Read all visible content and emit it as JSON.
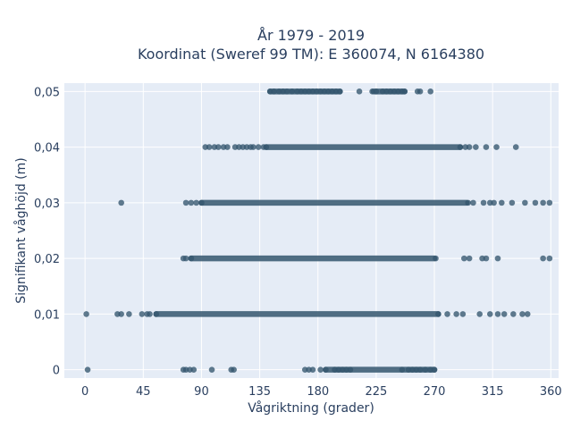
{
  "chart_data": {
    "type": "scatter",
    "title_line1": "År 1979 - 2019",
    "title_line2": "Koordinat (Sweref 99 TM): E 360074, N 6164380",
    "xlabel": "Vågriktning (grader)",
    "ylabel": "Signifikant våghöjd (m)",
    "xlim": [
      -16,
      366
    ],
    "ylim": [
      -0.0015,
      0.0515
    ],
    "xticks": [
      0,
      45,
      90,
      135,
      180,
      225,
      270,
      315,
      360
    ],
    "xtick_labels": [
      "0",
      "45",
      "90",
      "135",
      "180",
      "225",
      "270",
      "315",
      "360"
    ],
    "yticks": [
      0,
      0.01,
      0.02,
      0.03,
      0.04,
      0.05
    ],
    "ytick_labels": [
      "0",
      "0,01",
      "0,02",
      "0,03",
      "0,04",
      "0,05"
    ],
    "grid": true,
    "background_color": "#e5ecf6",
    "marker_color": "#34566e",
    "series": [
      {
        "y": 0.05,
        "dense_ranges": [
          [
            143,
            197
          ],
          [
            223,
            247
          ]
        ],
        "x": [
          143,
          146,
          150,
          153,
          156,
          160,
          164,
          167,
          170,
          173,
          176,
          179,
          182,
          185,
          188,
          191,
          194,
          197,
          212,
          222,
          225,
          230,
          233,
          236,
          239,
          242,
          245,
          247,
          257,
          259,
          267
        ]
      },
      {
        "y": 0.04,
        "dense_ranges": [
          [
            140,
            290
          ]
        ],
        "x": [
          93,
          96,
          100,
          103,
          107,
          110,
          116,
          119,
          122,
          125,
          128,
          130,
          134,
          138,
          140,
          290,
          294,
          297,
          302,
          310,
          318,
          333
        ]
      },
      {
        "y": 0.03,
        "dense_ranges": [
          [
            90,
            295
          ]
        ],
        "x": [
          28,
          78,
          82,
          86,
          90,
          296,
          300,
          308,
          313,
          316,
          322,
          330,
          340,
          348,
          354,
          359
        ]
      },
      {
        "y": 0.02,
        "dense_ranges": [
          [
            82,
            270
          ]
        ],
        "x": [
          76,
          78,
          82,
          271,
          293,
          297,
          307,
          310,
          319,
          354,
          359
        ]
      },
      {
        "y": 0.01,
        "dense_ranges": [
          [
            55,
            273
          ]
        ],
        "x": [
          1,
          25,
          28,
          34,
          44,
          48,
          50,
          55,
          273,
          280,
          287,
          292,
          305,
          313,
          319,
          324,
          331,
          338,
          342
        ]
      },
      {
        "y": 0,
        "dense_ranges": [
          [
            186,
            270
          ]
        ],
        "x": [
          2,
          76,
          78,
          81,
          84,
          98,
          113,
          115,
          170,
          173,
          176,
          182,
          186,
          193,
          196,
          199,
          202,
          205,
          245,
          250,
          253,
          256,
          259,
          263,
          267,
          270
        ]
      }
    ]
  }
}
